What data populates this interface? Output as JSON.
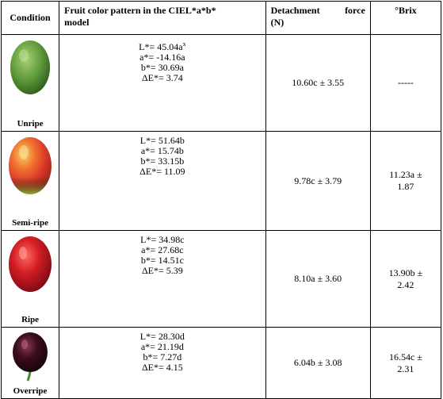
{
  "headers": {
    "condition": "Condition",
    "color_line1": "Fruit color pattern in the CIEL*a*b*",
    "color_line2": "model",
    "force_word1": "Detachment",
    "force_word2": "force",
    "force_unit": "(N)",
    "brix": "°Brix"
  },
  "rows": [
    {
      "condition": "Unripe",
      "color": [
        "L*= 45.04a",
        "a*= -14.16a",
        "b*= 30.69a",
        "ΔE*= 3.74"
      ],
      "color_sup": "x",
      "force": "10.60c ± 3.55",
      "brix_line1": "-----",
      "brix_line2": "",
      "fruit_color": "#5e9a3a"
    },
    {
      "condition": "Semi-ripe",
      "color": [
        "L*= 51.64b",
        "a*= 15.74b",
        "b*= 33.15b",
        "ΔE*= 11.09"
      ],
      "force": "9.78c ± 3.79",
      "brix_line1": "11.23a ±",
      "brix_line2": "1.87",
      "fruit_color": "#e0452a"
    },
    {
      "condition": "Ripe",
      "color": [
        "L*= 34.98c",
        "a*= 27.68c",
        "b*= 14.51c",
        "ΔE*= 5.39"
      ],
      "force": "8.10a ± 3.60",
      "brix_line1": "13.90b ±",
      "brix_line2": "2.42",
      "fruit_color": "#d21d24"
    },
    {
      "condition": "Overripe",
      "color": [
        "L*= 28.30d",
        "a*= 21.19d",
        "b*= 7.27d",
        "ΔE*= 4.15"
      ],
      "force": "6.04b ± 3.08",
      "brix_line1": "16.54c ±",
      "brix_line2": "2.31",
      "fruit_color": "#3a0d1a"
    }
  ]
}
